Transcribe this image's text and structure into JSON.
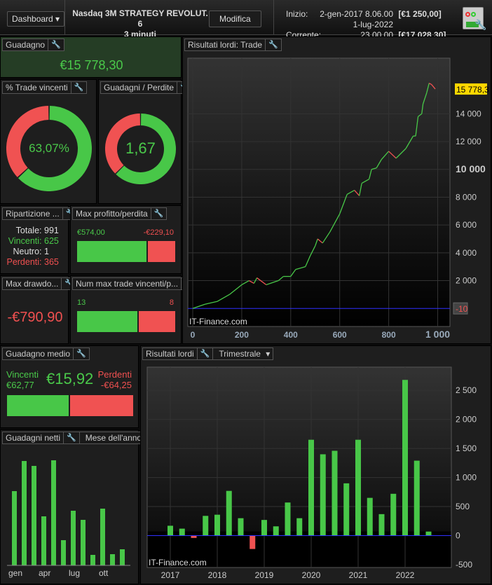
{
  "topbar": {
    "dashboard": "Dashboard",
    "strategy": "Nasdaq 3M STRATEGY REVOLUT. 6",
    "timeframe": "3 minuti",
    "modify": "Modifica",
    "start_label": "Inizio:",
    "start_date": "2-gen-2017 8.06.00",
    "start_value": "[€1 250,00]",
    "current_label": "Corrente:",
    "current_date": "1-lug-2022 23.00.00",
    "current_value": "[€17 028,30]"
  },
  "gain": {
    "title": "Guadagno",
    "value": "€15 778,30"
  },
  "win_pct": {
    "title": "% Trade vincenti",
    "value": "63,07%",
    "fraction": 0.6307
  },
  "gain_loss": {
    "title": "Guadagni / Perdite",
    "value": "1,67",
    "fraction": 0.625
  },
  "breakdown": {
    "title": "Ripartizione ...",
    "rows": [
      {
        "label": "Totale:",
        "value": "991"
      },
      {
        "label": "Vincenti:",
        "value": "625"
      },
      {
        "label": "Neutro:",
        "value": "1"
      },
      {
        "label": "Perdenti:",
        "value": "365"
      }
    ]
  },
  "max_pl": {
    "title": "Max profitto/perdita",
    "profit": "€574,00",
    "loss": "-€229,10"
  },
  "drawdown": {
    "title": "Max drawdo...",
    "value": "-€790,90"
  },
  "max_streak": {
    "title": "Num max trade vincenti/p...",
    "wins": "13",
    "losses": "8"
  },
  "avg_gain": {
    "title": "Guadagno medio",
    "win_label": "Vincenti",
    "win_value": "€62,77",
    "value": "€15,92",
    "loss_label": "Perdenti",
    "loss_value": "-€64,25"
  },
  "net_month": {
    "title": "Guadagni netti",
    "dropdown": "Mese dell'anno"
  },
  "equity_title": "Risultati lordi: Trade",
  "quarter_title": "Risultati lordi",
  "quarter_dropdown": "Trimestrale",
  "watermark": "IT-Finance.com",
  "colors": {
    "green": "#48c748",
    "red": "#f05252",
    "zero_line": "#3030ff",
    "last_label": "#ffd700"
  },
  "chart_data": [
    {
      "type": "line",
      "title": "Risultati lordi: Trade",
      "xlim": [
        0,
        1050
      ],
      "ylim": [
        -1300,
        18000
      ],
      "xticks": [
        "0",
        "200",
        "400",
        "600",
        "800",
        "1 000"
      ],
      "yticks": [
        "2 000",
        "4 000",
        "6 000",
        "8 000",
        "10 000",
        "12 000",
        "14 000"
      ],
      "last_value_label": "15 778,3",
      "zero_label": "-10",
      "x": [
        0,
        50,
        100,
        150,
        200,
        230,
        250,
        262,
        300,
        350,
        370,
        400,
        420,
        460,
        480,
        500,
        510,
        530,
        560,
        600,
        630,
        660,
        680,
        690,
        720,
        730,
        750,
        770,
        800,
        830,
        870,
        900,
        910,
        920,
        935,
        940,
        955,
        965,
        975,
        990
      ],
      "y": [
        0,
        300,
        500,
        1000,
        1700,
        2000,
        1800,
        2200,
        1700,
        2000,
        2300,
        2300,
        2800,
        3000,
        3800,
        4500,
        5000,
        4700,
        5500,
        6800,
        8200,
        8500,
        8100,
        9000,
        9300,
        10000,
        10100,
        10700,
        11300,
        10800,
        11500,
        12400,
        12400,
        13800,
        14000,
        14700,
        15500,
        16200,
        16100,
        15778
      ]
    },
    {
      "type": "bar",
      "title": "Risultati lordi",
      "ylim": [
        -500,
        2900
      ],
      "xticks": [
        "2017",
        "2018",
        "2019",
        "2020",
        "2021",
        "2022"
      ],
      "yticks": [
        "-500",
        "0",
        "500",
        "1 000",
        "1 500",
        "2 000",
        "2 500"
      ],
      "values": [
        170,
        120,
        -40,
        340,
        360,
        770,
        300,
        -230,
        270,
        160,
        570,
        300,
        1650,
        1400,
        1460,
        900,
        1650,
        650,
        370,
        720,
        2680,
        1290,
        70
      ]
    },
    {
      "type": "bar",
      "title": "Guadagni netti",
      "categories": [
        "gen",
        "feb",
        "mar",
        "apr",
        "mag",
        "giu",
        "lug",
        "ago",
        "set",
        "ott",
        "nov",
        "dic"
      ],
      "xticks": [
        "gen",
        "apr",
        "lug",
        "ott"
      ],
      "values": [
        106,
        149,
        142,
        70,
        150,
        36,
        78,
        65,
        15,
        81,
        16,
        23
      ]
    }
  ]
}
